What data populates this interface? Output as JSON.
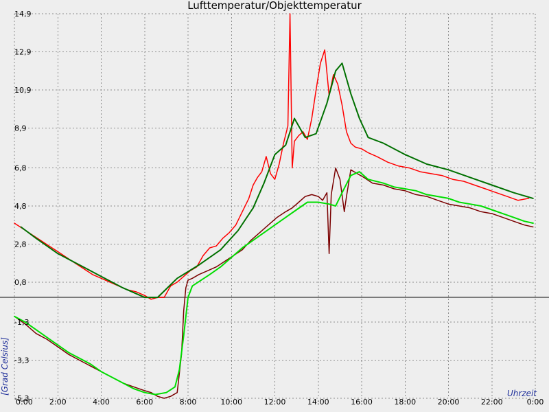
{
  "chart_data": {
    "type": "line",
    "title": "Lufttemperatur/Objekttemperatur",
    "xlabel": "Uhrzeit",
    "ylabel": "[Grad Celsius]",
    "x_unit": "hour_of_day",
    "xlim": [
      0,
      24
    ],
    "ylim": [
      -5.3,
      14.9
    ],
    "x_tick_labels": [
      "0:00",
      "2:00",
      "4:00",
      "6:00",
      "8:00",
      "10:00",
      "12:00",
      "14:00",
      "16:00",
      "18:00",
      "20:00",
      "22:00",
      "0:00"
    ],
    "y_tick_labels": [
      {
        "value": 14.9,
        "label": "14,9"
      },
      {
        "value": 12.9,
        "label": "12,9"
      },
      {
        "value": 10.9,
        "label": "10,9"
      },
      {
        "value": 8.9,
        "label": "8,9"
      },
      {
        "value": 6.8,
        "label": "6,8"
      },
      {
        "value": 4.8,
        "label": "4,8"
      },
      {
        "value": 2.8,
        "label": "2,8"
      },
      {
        "value": 0.8,
        "label": "0,8"
      },
      {
        "value": -1.3,
        "label": "-1,3"
      },
      {
        "value": -3.3,
        "label": "-3,3"
      },
      {
        "value": -5.3,
        "label": "-5,3"
      }
    ],
    "zero_line_y": 0,
    "grid": true,
    "legend": false,
    "series": [
      {
        "key": "air-temp-raw",
        "color": "#ff0000",
        "stroke_width": 1.5,
        "x": [
          0.0,
          0.4,
          0.8,
          1.2,
          1.6,
          2.0,
          2.4,
          2.8,
          3.2,
          3.6,
          4.0,
          4.4,
          4.8,
          5.2,
          5.6,
          6.0,
          6.3,
          6.6,
          6.9,
          7.2,
          7.5,
          7.8,
          8.1,
          8.4,
          8.7,
          9.0,
          9.3,
          9.6,
          9.9,
          10.2,
          10.5,
          10.8,
          11.0,
          11.2,
          11.4,
          11.6,
          11.8,
          12.0,
          12.2,
          12.4,
          12.6,
          12.7,
          12.8,
          12.9,
          13.1,
          13.3,
          13.5,
          13.7,
          13.9,
          14.1,
          14.3,
          14.5,
          14.7,
          14.9,
          15.1,
          15.3,
          15.5,
          15.7,
          16.0,
          16.3,
          16.7,
          17.2,
          17.7,
          18.2,
          18.7,
          19.2,
          19.7,
          20.2,
          20.7,
          21.2,
          21.7,
          22.2,
          22.7,
          23.2,
          23.7
        ],
        "y": [
          3.9,
          3.6,
          3.3,
          3.0,
          2.7,
          2.4,
          2.1,
          1.8,
          1.5,
          1.2,
          1.0,
          0.8,
          0.6,
          0.4,
          0.3,
          0.1,
          -0.1,
          0.0,
          0.0,
          0.6,
          0.8,
          1.1,
          1.4,
          1.6,
          2.2,
          2.6,
          2.7,
          3.1,
          3.4,
          3.8,
          4.5,
          5.2,
          5.9,
          6.3,
          6.6,
          7.4,
          6.5,
          6.2,
          7.0,
          8.1,
          9.0,
          14.9,
          6.8,
          8.2,
          8.5,
          8.7,
          8.3,
          9.4,
          10.9,
          12.3,
          13.0,
          10.6,
          11.7,
          11.2,
          10.1,
          8.7,
          8.1,
          7.9,
          7.8,
          7.6,
          7.4,
          7.1,
          6.9,
          6.8,
          6.6,
          6.5,
          6.4,
          6.2,
          6.1,
          5.9,
          5.7,
          5.5,
          5.3,
          5.1,
          5.2
        ]
      },
      {
        "key": "air-temp-smoothed",
        "color": "#007000",
        "stroke_width": 2,
        "x": [
          0.3,
          1.0,
          2.0,
          3.0,
          4.0,
          5.0,
          6.0,
          6.6,
          7.5,
          8.5,
          9.5,
          10.3,
          11.0,
          11.5,
          12.0,
          12.5,
          12.9,
          13.4,
          13.9,
          14.4,
          14.8,
          15.1,
          15.5,
          15.9,
          16.3,
          17.0,
          18.0,
          19.0,
          20.0,
          21.0,
          22.0,
          23.0,
          23.9
        ],
        "y": [
          3.7,
          3.1,
          2.3,
          1.7,
          1.1,
          0.5,
          0.0,
          0.0,
          1.0,
          1.7,
          2.5,
          3.5,
          4.7,
          6.0,
          7.5,
          8.0,
          9.4,
          8.4,
          8.6,
          10.2,
          11.9,
          12.3,
          10.7,
          9.4,
          8.4,
          8.1,
          7.5,
          7.0,
          6.7,
          6.3,
          5.9,
          5.5,
          5.2
        ]
      },
      {
        "key": "object-temp-raw",
        "color": "#7a0000",
        "stroke_width": 1.5,
        "x": [
          0.0,
          0.5,
          1.0,
          1.5,
          2.0,
          2.5,
          3.0,
          3.5,
          4.0,
          4.5,
          5.0,
          5.5,
          6.0,
          6.3,
          6.6,
          6.9,
          7.2,
          7.5,
          7.7,
          7.8,
          7.9,
          8.0,
          8.2,
          8.5,
          8.9,
          9.3,
          9.7,
          10.1,
          10.5,
          10.9,
          11.3,
          11.7,
          12.1,
          12.5,
          12.8,
          13.1,
          13.4,
          13.7,
          14.0,
          14.2,
          14.4,
          14.5,
          14.6,
          14.8,
          15.0,
          15.2,
          15.3,
          15.5,
          15.8,
          16.1,
          16.5,
          17.0,
          17.5,
          18.0,
          18.5,
          19.0,
          19.5,
          20.0,
          20.5,
          21.0,
          21.5,
          22.0,
          22.5,
          23.0,
          23.5,
          23.9
        ],
        "y": [
          -1.0,
          -1.4,
          -1.9,
          -2.2,
          -2.6,
          -3.0,
          -3.3,
          -3.6,
          -3.9,
          -4.2,
          -4.5,
          -4.7,
          -4.9,
          -5.0,
          -5.2,
          -5.3,
          -5.2,
          -5.0,
          -3.0,
          -0.7,
          0.5,
          0.9,
          1.0,
          1.2,
          1.4,
          1.6,
          1.9,
          2.2,
          2.5,
          3.0,
          3.4,
          3.8,
          4.2,
          4.5,
          4.7,
          5.0,
          5.3,
          5.4,
          5.3,
          5.1,
          5.5,
          2.3,
          5.4,
          6.8,
          6.2,
          4.5,
          5.3,
          6.7,
          6.5,
          6.3,
          6.0,
          5.9,
          5.7,
          5.6,
          5.4,
          5.3,
          5.1,
          4.9,
          4.8,
          4.7,
          4.5,
          4.4,
          4.2,
          4.0,
          3.8,
          3.7
        ]
      },
      {
        "key": "object-temp-smoothed",
        "color": "#00dd00",
        "stroke_width": 2,
        "x": [
          0.0,
          0.5,
          1.0,
          1.5,
          2.0,
          2.5,
          3.0,
          3.5,
          4.0,
          4.5,
          5.0,
          5.5,
          6.0,
          6.5,
          7.0,
          7.4,
          7.6,
          7.8,
          8.0,
          8.2,
          8.6,
          9.0,
          9.5,
          10.0,
          10.5,
          11.0,
          11.5,
          12.0,
          12.5,
          13.0,
          13.5,
          14.0,
          14.5,
          14.8,
          15.1,
          15.5,
          15.9,
          16.3,
          17.0,
          17.5,
          18.0,
          18.5,
          19.0,
          19.5,
          20.0,
          20.5,
          21.0,
          21.5,
          22.0,
          22.5,
          23.0,
          23.5,
          23.9
        ],
        "y": [
          -1.0,
          -1.3,
          -1.7,
          -2.1,
          -2.5,
          -2.9,
          -3.2,
          -3.5,
          -3.9,
          -4.2,
          -4.5,
          -4.8,
          -5.0,
          -5.1,
          -5.0,
          -4.7,
          -3.8,
          -2.0,
          0.0,
          0.6,
          0.9,
          1.2,
          1.6,
          2.1,
          2.6,
          3.0,
          3.4,
          3.8,
          4.2,
          4.6,
          5.0,
          5.0,
          4.9,
          4.8,
          5.5,
          6.4,
          6.6,
          6.2,
          6.0,
          5.8,
          5.7,
          5.6,
          5.4,
          5.3,
          5.2,
          5.0,
          4.9,
          4.8,
          4.6,
          4.4,
          4.2,
          4.0,
          3.9
        ]
      }
    ]
  }
}
